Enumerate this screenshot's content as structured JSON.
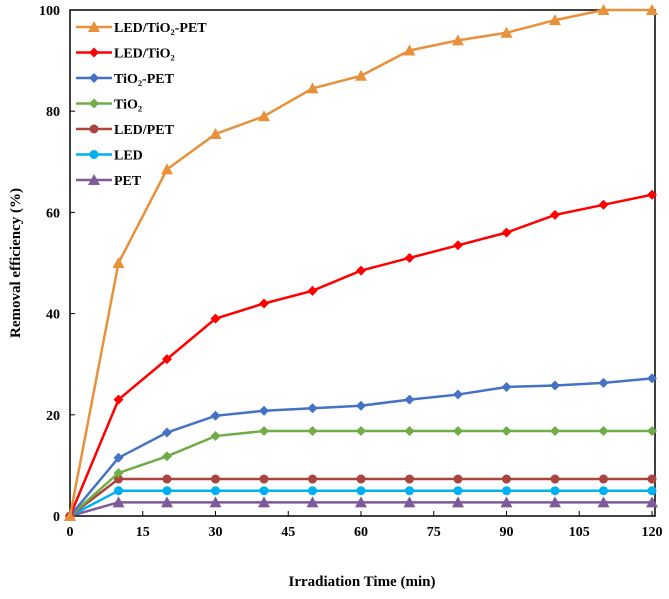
{
  "chart_data": {
    "type": "line",
    "title": "",
    "xlabel": "Irradiation Time (min)",
    "ylabel": "Removal efficiency (%)",
    "xlim": [
      0,
      120
    ],
    "ylim": [
      0,
      100
    ],
    "xticks": [
      "0",
      "15",
      "30",
      "45",
      "60",
      "75",
      "90",
      "105",
      "120"
    ],
    "yticks": [
      "0",
      "20",
      "40",
      "60",
      "80",
      "100"
    ],
    "grid": false,
    "legend_position": "top-left",
    "x": [
      0,
      10,
      20,
      30,
      40,
      50,
      60,
      70,
      80,
      90,
      100,
      110,
      120
    ],
    "series": [
      {
        "name": "LED/TiO₂-PET",
        "color": "#E8913A",
        "marker": "triangle",
        "values": [
          0,
          50,
          68.5,
          75.5,
          79,
          84.5,
          87,
          92,
          94,
          95.5,
          98,
          100,
          100
        ]
      },
      {
        "name": "LED/TiO₂",
        "color": "#FF0000",
        "marker": "diamond",
        "values": [
          0,
          23,
          31,
          39,
          42,
          44.5,
          48.5,
          51,
          53.5,
          56,
          59.5,
          61.5,
          63.5
        ]
      },
      {
        "name": "TiO₂-PET",
        "color": "#4472C4",
        "marker": "diamond",
        "values": [
          0,
          11.5,
          16.5,
          19.8,
          20.8,
          21.3,
          21.8,
          23,
          24,
          25.5,
          25.8,
          26.3,
          27.2
        ]
      },
      {
        "name": "TiO₂",
        "color": "#70AD47",
        "marker": "diamond",
        "values": [
          0,
          8.5,
          11.8,
          15.8,
          16.8,
          16.8,
          16.8,
          16.8,
          16.8,
          16.8,
          16.8,
          16.8,
          16.8
        ]
      },
      {
        "name": "LED/PET",
        "color": "#A9443E",
        "marker": "circle",
        "values": [
          0,
          7.3,
          7.3,
          7.3,
          7.3,
          7.3,
          7.3,
          7.3,
          7.3,
          7.3,
          7.3,
          7.3,
          7.3
        ]
      },
      {
        "name": "LED",
        "color": "#00B0F0",
        "marker": "circle",
        "values": [
          0,
          5,
          5,
          5,
          5,
          5,
          5,
          5,
          5,
          5,
          5,
          5,
          5
        ]
      },
      {
        "name": "PET",
        "color": "#7E5A9B",
        "marker": "triangle",
        "values": [
          0,
          2.7,
          2.7,
          2.7,
          2.7,
          2.7,
          2.7,
          2.7,
          2.7,
          2.7,
          2.7,
          2.7,
          2.7
        ]
      }
    ]
  }
}
